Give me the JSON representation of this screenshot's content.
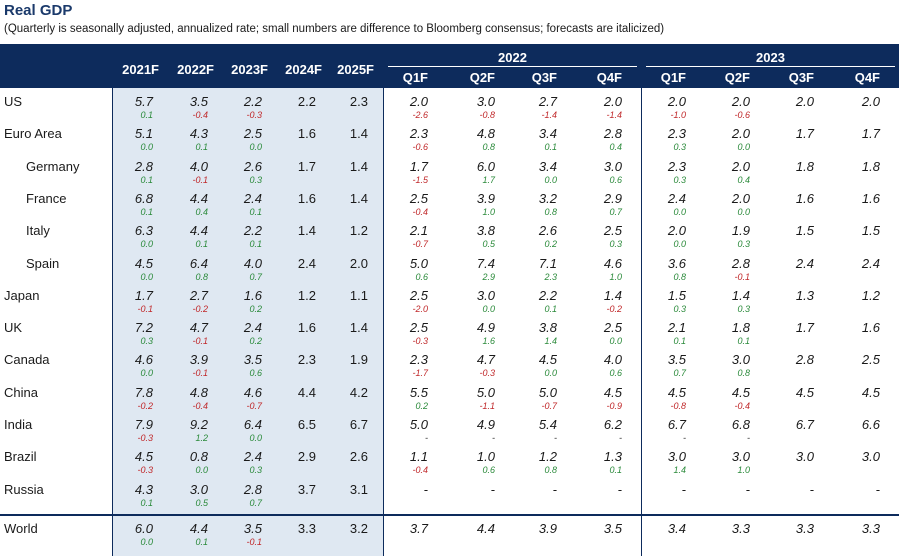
{
  "title": "Real GDP",
  "subtitle": "(Quarterly is seasonally adjusted, annualized rate; small numbers are difference to Bloomberg consensus; forecasts are italicized)",
  "annual_headers": [
    "2021F",
    "2022F",
    "2023F",
    "2024F",
    "2025F"
  ],
  "year_groups": [
    "2022",
    "2023"
  ],
  "quarter_headers": [
    "Q1F",
    "Q2F",
    "Q3F",
    "Q4F",
    "Q1F",
    "Q2F",
    "Q3F",
    "Q4F"
  ],
  "colors": {
    "header_bg": "#0d2b5c",
    "shade": "#dfe8f2",
    "positive": "#2a8a3a",
    "negative": "#c0282a"
  },
  "rows": [
    {
      "label": "US",
      "indent": false,
      "values": [
        "5.7",
        "3.5",
        "2.2",
        "2.2",
        "2.3",
        "2.0",
        "3.0",
        "2.7",
        "2.0",
        "2.0",
        "2.0",
        "2.0",
        "2.0"
      ],
      "diffs": [
        "0.1",
        "-0.4",
        "-0.3",
        "",
        "",
        "-2.6",
        "-0.8",
        "-1.4",
        "-1.4",
        "-1.0",
        "-0.6",
        "",
        ""
      ]
    },
    {
      "label": "Euro Area",
      "indent": false,
      "values": [
        "5.1",
        "4.3",
        "2.5",
        "1.6",
        "1.4",
        "2.3",
        "4.8",
        "3.4",
        "2.8",
        "2.3",
        "2.0",
        "1.7",
        "1.7"
      ],
      "diffs": [
        "0.0",
        "0.1",
        "0.0",
        "",
        "",
        "-0.6",
        "0.8",
        "0.1",
        "0.4",
        "0.3",
        "0.0",
        "",
        ""
      ]
    },
    {
      "label": "Germany",
      "indent": true,
      "values": [
        "2.8",
        "4.0",
        "2.6",
        "1.7",
        "1.4",
        "1.7",
        "6.0",
        "3.4",
        "3.0",
        "2.3",
        "2.0",
        "1.8",
        "1.8"
      ],
      "diffs": [
        "0.1",
        "-0.1",
        "0.3",
        "",
        "",
        "-1.5",
        "1.7",
        "0.0",
        "0.6",
        "0.3",
        "0.4",
        "",
        ""
      ]
    },
    {
      "label": "France",
      "indent": true,
      "values": [
        "6.8",
        "4.4",
        "2.4",
        "1.6",
        "1.4",
        "2.5",
        "3.9",
        "3.2",
        "2.9",
        "2.4",
        "2.0",
        "1.6",
        "1.6"
      ],
      "diffs": [
        "0.1",
        "0.4",
        "0.1",
        "",
        "",
        "-0.4",
        "1.0",
        "0.8",
        "0.7",
        "0.0",
        "0.0",
        "",
        ""
      ]
    },
    {
      "label": "Italy",
      "indent": true,
      "values": [
        "6.3",
        "4.4",
        "2.2",
        "1.4",
        "1.2",
        "2.1",
        "3.8",
        "2.6",
        "2.5",
        "2.0",
        "1.9",
        "1.5",
        "1.5"
      ],
      "diffs": [
        "0.0",
        "0.1",
        "0.1",
        "",
        "",
        "-0.7",
        "0.5",
        "0.2",
        "0.3",
        "0.0",
        "0.3",
        "",
        ""
      ]
    },
    {
      "label": "Spain",
      "indent": true,
      "values": [
        "4.5",
        "6.4",
        "4.0",
        "2.4",
        "2.0",
        "5.0",
        "7.4",
        "7.1",
        "4.6",
        "3.6",
        "2.8",
        "2.4",
        "2.4"
      ],
      "diffs": [
        "0.0",
        "0.8",
        "0.7",
        "",
        "",
        "0.6",
        "2.9",
        "2.3",
        "1.0",
        "0.8",
        "-0.1",
        "",
        ""
      ]
    },
    {
      "label": "Japan",
      "indent": false,
      "values": [
        "1.7",
        "2.7",
        "1.6",
        "1.2",
        "1.1",
        "2.5",
        "3.0",
        "2.2",
        "1.4",
        "1.5",
        "1.4",
        "1.3",
        "1.2"
      ],
      "diffs": [
        "-0.1",
        "-0.2",
        "0.2",
        "",
        "",
        "-2.0",
        "0.0",
        "0.1",
        "-0.2",
        "0.3",
        "0.3",
        "",
        ""
      ]
    },
    {
      "label": "UK",
      "indent": false,
      "values": [
        "7.2",
        "4.7",
        "2.4",
        "1.6",
        "1.4",
        "2.5",
        "4.9",
        "3.8",
        "2.5",
        "2.1",
        "1.8",
        "1.7",
        "1.6"
      ],
      "diffs": [
        "0.3",
        "-0.1",
        "0.2",
        "",
        "",
        "-0.3",
        "1.6",
        "1.4",
        "0.0",
        "0.1",
        "0.1",
        "",
        ""
      ]
    },
    {
      "label": "Canada",
      "indent": false,
      "values": [
        "4.6",
        "3.9",
        "3.5",
        "2.3",
        "1.9",
        "2.3",
        "4.7",
        "4.5",
        "4.0",
        "3.5",
        "3.0",
        "2.8",
        "2.5"
      ],
      "diffs": [
        "0.0",
        "-0.1",
        "0.6",
        "",
        "",
        "-1.7",
        "-0.3",
        "0.0",
        "0.6",
        "0.7",
        "0.8",
        "",
        ""
      ]
    },
    {
      "label": "China",
      "indent": false,
      "values": [
        "7.8",
        "4.8",
        "4.6",
        "4.4",
        "4.2",
        "5.5",
        "5.0",
        "5.0",
        "4.5",
        "4.5",
        "4.5",
        "4.5",
        "4.5"
      ],
      "diffs": [
        "-0.2",
        "-0.4",
        "-0.7",
        "",
        "",
        "0.2",
        "-1.1",
        "-0.7",
        "-0.9",
        "-0.8",
        "-0.4",
        "",
        ""
      ]
    },
    {
      "label": "India",
      "indent": false,
      "values": [
        "7.9",
        "9.2",
        "6.4",
        "6.5",
        "6.7",
        "5.0",
        "4.9",
        "5.4",
        "6.2",
        "6.7",
        "6.8",
        "6.7",
        "6.6"
      ],
      "diffs": [
        "-0.3",
        "1.2",
        "0.0",
        "",
        "",
        "-",
        "-",
        "-",
        "-",
        "-",
        "-",
        "",
        ""
      ]
    },
    {
      "label": "Brazil",
      "indent": false,
      "values": [
        "4.5",
        "0.8",
        "2.4",
        "2.9",
        "2.6",
        "1.1",
        "1.0",
        "1.2",
        "1.3",
        "3.0",
        "3.0",
        "3.0",
        "3.0"
      ],
      "diffs": [
        "-0.3",
        "0.0",
        "0.3",
        "",
        "",
        "-0.4",
        "0.6",
        "0.8",
        "0.1",
        "1.4",
        "1.0",
        "",
        ""
      ]
    },
    {
      "label": "Russia",
      "indent": false,
      "values": [
        "4.3",
        "3.0",
        "2.8",
        "3.7",
        "3.1",
        "-",
        "-",
        "-",
        "-",
        "-",
        "-",
        "-",
        "-"
      ],
      "diffs": [
        "0.1",
        "0.5",
        "0.7",
        "",
        "",
        "",
        "",
        "",
        "",
        "",
        "",
        "",
        ""
      ]
    }
  ],
  "world": {
    "label": "World",
    "values": [
      "6.0",
      "4.4",
      "3.5",
      "3.3",
      "3.2",
      "3.7",
      "4.4",
      "3.9",
      "3.5",
      "3.4",
      "3.3",
      "3.3",
      "3.3"
    ],
    "diffs": [
      "0.0",
      "0.1",
      "-0.1",
      "",
      "",
      "",
      "",
      "",
      "",
      "",
      "",
      "",
      ""
    ]
  }
}
